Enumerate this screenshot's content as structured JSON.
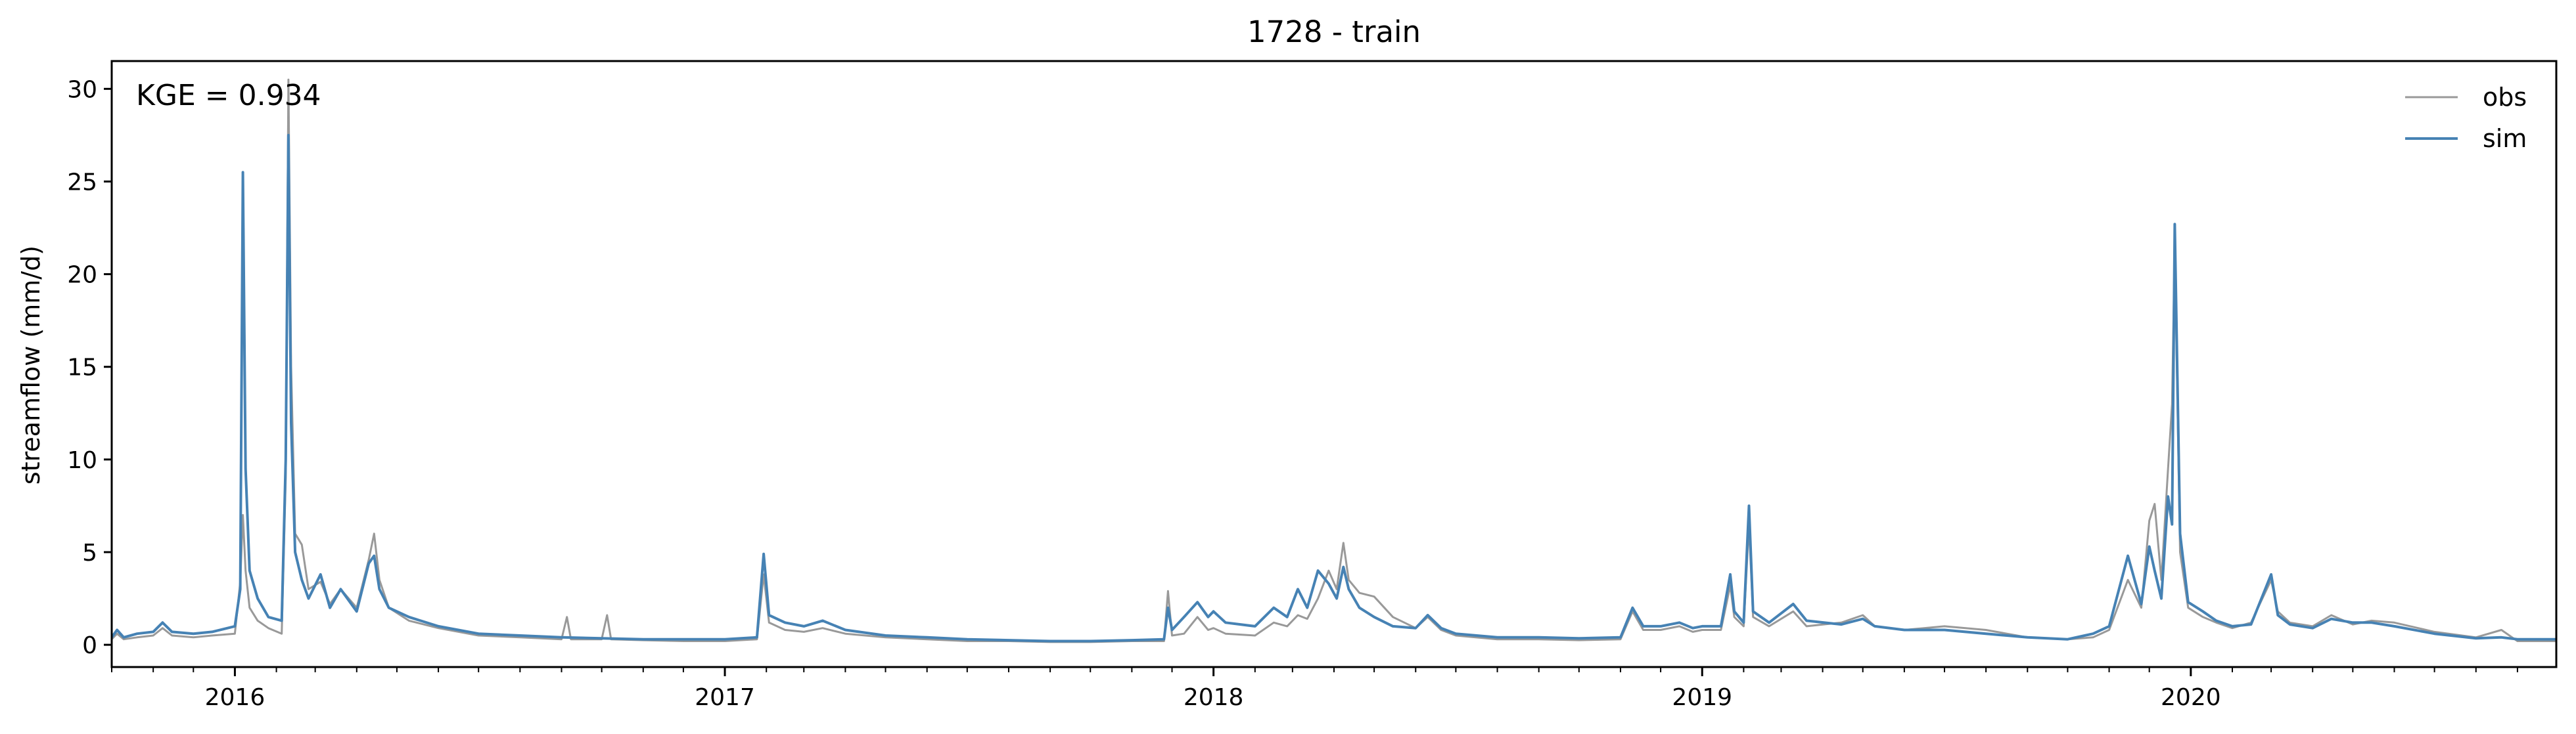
{
  "chart_data": {
    "type": "line",
    "title": "1728 - train",
    "xlabel": "",
    "ylabel": "streamflow (mm/d)",
    "annotation": "KGE = 0.934",
    "xlim": [
      "2015-10-01",
      "2020-09-30"
    ],
    "ylim": [
      -1.2,
      31.5
    ],
    "x_ticks": [
      "2016",
      "2017",
      "2018",
      "2019",
      "2020"
    ],
    "y_ticks": [
      "0",
      "5",
      "10",
      "15",
      "20",
      "25",
      "30"
    ],
    "legend_loc": "upper right",
    "grid": false,
    "series": [
      {
        "name": "obs",
        "color": "#999999",
        "points": [
          [
            "2015-10-01",
            0.3
          ],
          [
            "2015-10-05",
            0.6
          ],
          [
            "2015-10-10",
            0.3
          ],
          [
            "2015-10-20",
            0.4
          ],
          [
            "2015-11-01",
            0.5
          ],
          [
            "2015-11-08",
            0.9
          ],
          [
            "2015-11-15",
            0.5
          ],
          [
            "2015-12-01",
            0.4
          ],
          [
            "2015-12-15",
            0.5
          ],
          [
            "2016-01-01",
            0.6
          ],
          [
            "2016-01-05",
            3.4
          ],
          [
            "2016-01-07",
            7.0
          ],
          [
            "2016-01-09",
            4.0
          ],
          [
            "2016-01-12",
            2.0
          ],
          [
            "2016-01-18",
            1.3
          ],
          [
            "2016-01-26",
            0.9
          ],
          [
            "2016-02-05",
            0.6
          ],
          [
            "2016-02-08",
            9.0
          ],
          [
            "2016-02-10",
            30.5
          ],
          [
            "2016-02-12",
            15.0
          ],
          [
            "2016-02-15",
            6.0
          ],
          [
            "2016-02-20",
            5.4
          ],
          [
            "2016-02-25",
            3.0
          ],
          [
            "2016-03-05",
            3.4
          ],
          [
            "2016-03-12",
            2.2
          ],
          [
            "2016-03-20",
            3.0
          ],
          [
            "2016-04-01",
            2.0
          ],
          [
            "2016-04-10",
            4.6
          ],
          [
            "2016-04-14",
            6.0
          ],
          [
            "2016-04-18",
            3.5
          ],
          [
            "2016-04-25",
            2.0
          ],
          [
            "2016-05-10",
            1.3
          ],
          [
            "2016-06-01",
            0.9
          ],
          [
            "2016-07-01",
            0.5
          ],
          [
            "2016-08-01",
            0.4
          ],
          [
            "2016-09-01",
            0.3
          ],
          [
            "2016-09-05",
            1.5
          ],
          [
            "2016-09-08",
            0.3
          ],
          [
            "2016-10-01",
            0.3
          ],
          [
            "2016-10-05",
            1.6
          ],
          [
            "2016-10-08",
            0.3
          ],
          [
            "2016-11-01",
            0.25
          ],
          [
            "2016-12-01",
            0.2
          ],
          [
            "2017-01-01",
            0.2
          ],
          [
            "2017-01-25",
            0.3
          ],
          [
            "2017-01-30",
            3.8
          ],
          [
            "2017-02-03",
            1.2
          ],
          [
            "2017-02-15",
            0.8
          ],
          [
            "2017-03-01",
            0.7
          ],
          [
            "2017-03-15",
            0.9
          ],
          [
            "2017-04-01",
            0.6
          ],
          [
            "2017-05-01",
            0.4
          ],
          [
            "2017-06-01",
            0.3
          ],
          [
            "2017-07-01",
            0.2
          ],
          [
            "2017-08-01",
            0.2
          ],
          [
            "2017-09-01",
            0.15
          ],
          [
            "2017-10-01",
            0.15
          ],
          [
            "2017-11-01",
            0.2
          ],
          [
            "2017-11-25",
            0.2
          ],
          [
            "2017-11-28",
            2.9
          ],
          [
            "2017-12-01",
            0.5
          ],
          [
            "2017-12-10",
            0.6
          ],
          [
            "2017-12-20",
            1.5
          ],
          [
            "2017-12-28",
            0.8
          ],
          [
            "2018-01-01",
            0.9
          ],
          [
            "2018-01-10",
            0.6
          ],
          [
            "2018-02-01",
            0.5
          ],
          [
            "2018-02-15",
            1.2
          ],
          [
            "2018-02-25",
            1.0
          ],
          [
            "2018-03-05",
            1.6
          ],
          [
            "2018-03-12",
            1.4
          ],
          [
            "2018-03-20",
            2.5
          ],
          [
            "2018-03-28",
            4.0
          ],
          [
            "2018-04-03",
            3.0
          ],
          [
            "2018-04-08",
            5.5
          ],
          [
            "2018-04-12",
            3.5
          ],
          [
            "2018-04-20",
            2.8
          ],
          [
            "2018-05-01",
            2.6
          ],
          [
            "2018-05-15",
            1.5
          ],
          [
            "2018-06-01",
            0.9
          ],
          [
            "2018-06-10",
            1.5
          ],
          [
            "2018-06-20",
            0.8
          ],
          [
            "2018-07-01",
            0.5
          ],
          [
            "2018-08-01",
            0.3
          ],
          [
            "2018-09-01",
            0.3
          ],
          [
            "2018-10-01",
            0.25
          ],
          [
            "2018-11-01",
            0.3
          ],
          [
            "2018-11-10",
            1.8
          ],
          [
            "2018-11-18",
            0.8
          ],
          [
            "2018-12-01",
            0.8
          ],
          [
            "2018-12-15",
            1.0
          ],
          [
            "2018-12-25",
            0.7
          ],
          [
            "2019-01-01",
            0.8
          ],
          [
            "2019-01-15",
            0.8
          ],
          [
            "2019-01-22",
            3.2
          ],
          [
            "2019-01-25",
            1.5
          ],
          [
            "2019-02-01",
            1.0
          ],
          [
            "2019-02-05",
            6.5
          ],
          [
            "2019-02-08",
            1.5
          ],
          [
            "2019-02-20",
            1.0
          ],
          [
            "2019-03-10",
            1.8
          ],
          [
            "2019-03-20",
            1.0
          ],
          [
            "2019-04-15",
            1.2
          ],
          [
            "2019-05-01",
            1.6
          ],
          [
            "2019-05-10",
            1.0
          ],
          [
            "2019-06-01",
            0.8
          ],
          [
            "2019-07-01",
            1.0
          ],
          [
            "2019-08-01",
            0.8
          ],
          [
            "2019-09-01",
            0.4
          ],
          [
            "2019-10-01",
            0.3
          ],
          [
            "2019-10-20",
            0.4
          ],
          [
            "2019-11-01",
            0.8
          ],
          [
            "2019-11-15",
            3.5
          ],
          [
            "2019-11-25",
            2.0
          ],
          [
            "2019-12-01",
            6.7
          ],
          [
            "2019-12-05",
            7.6
          ],
          [
            "2019-12-10",
            3.5
          ],
          [
            "2019-12-15",
            9.5
          ],
          [
            "2019-12-18",
            13.0
          ],
          [
            "2019-12-20",
            21.5
          ],
          [
            "2019-12-24",
            5.0
          ],
          [
            "2019-12-30",
            2.0
          ],
          [
            "2020-01-10",
            1.5
          ],
          [
            "2020-01-20",
            1.2
          ],
          [
            "2020-02-01",
            0.9
          ],
          [
            "2020-02-15",
            1.2
          ],
          [
            "2020-03-01",
            3.5
          ],
          [
            "2020-03-06",
            1.8
          ],
          [
            "2020-03-15",
            1.2
          ],
          [
            "2020-04-01",
            1.0
          ],
          [
            "2020-04-15",
            1.6
          ],
          [
            "2020-05-01",
            1.1
          ],
          [
            "2020-05-15",
            1.3
          ],
          [
            "2020-06-01",
            1.2
          ],
          [
            "2020-07-01",
            0.7
          ],
          [
            "2020-08-01",
            0.4
          ],
          [
            "2020-08-20",
            0.8
          ],
          [
            "2020-09-01",
            0.2
          ],
          [
            "2020-09-30",
            0.2
          ]
        ]
      },
      {
        "name": "sim",
        "color": "#4682b4",
        "points": [
          [
            "2015-10-01",
            0.4
          ],
          [
            "2015-10-05",
            0.8
          ],
          [
            "2015-10-10",
            0.4
          ],
          [
            "2015-10-20",
            0.6
          ],
          [
            "2015-11-01",
            0.7
          ],
          [
            "2015-11-08",
            1.2
          ],
          [
            "2015-11-15",
            0.7
          ],
          [
            "2015-12-01",
            0.6
          ],
          [
            "2015-12-15",
            0.7
          ],
          [
            "2016-01-01",
            1.0
          ],
          [
            "2016-01-05",
            3.0
          ],
          [
            "2016-01-07",
            25.5
          ],
          [
            "2016-01-09",
            9.5
          ],
          [
            "2016-01-12",
            4.0
          ],
          [
            "2016-01-18",
            2.5
          ],
          [
            "2016-01-26",
            1.5
          ],
          [
            "2016-02-05",
            1.3
          ],
          [
            "2016-02-08",
            10.0
          ],
          [
            "2016-02-10",
            27.5
          ],
          [
            "2016-02-12",
            12.0
          ],
          [
            "2016-02-15",
            5.0
          ],
          [
            "2016-02-20",
            3.5
          ],
          [
            "2016-02-25",
            2.5
          ],
          [
            "2016-03-05",
            3.8
          ],
          [
            "2016-03-12",
            2.0
          ],
          [
            "2016-03-20",
            3.0
          ],
          [
            "2016-04-01",
            1.8
          ],
          [
            "2016-04-10",
            4.4
          ],
          [
            "2016-04-14",
            4.8
          ],
          [
            "2016-04-18",
            3.0
          ],
          [
            "2016-04-25",
            2.0
          ],
          [
            "2016-05-10",
            1.5
          ],
          [
            "2016-06-01",
            1.0
          ],
          [
            "2016-07-01",
            0.6
          ],
          [
            "2016-08-01",
            0.5
          ],
          [
            "2016-09-01",
            0.4
          ],
          [
            "2016-10-01",
            0.35
          ],
          [
            "2016-11-01",
            0.3
          ],
          [
            "2016-12-01",
            0.3
          ],
          [
            "2017-01-01",
            0.3
          ],
          [
            "2017-01-25",
            0.4
          ],
          [
            "2017-01-30",
            4.9
          ],
          [
            "2017-02-03",
            1.6
          ],
          [
            "2017-02-15",
            1.2
          ],
          [
            "2017-03-01",
            1.0
          ],
          [
            "2017-03-15",
            1.3
          ],
          [
            "2017-04-01",
            0.8
          ],
          [
            "2017-05-01",
            0.5
          ],
          [
            "2017-06-01",
            0.4
          ],
          [
            "2017-07-01",
            0.3
          ],
          [
            "2017-08-01",
            0.25
          ],
          [
            "2017-09-01",
            0.2
          ],
          [
            "2017-10-01",
            0.2
          ],
          [
            "2017-11-01",
            0.25
          ],
          [
            "2017-11-25",
            0.3
          ],
          [
            "2017-11-28",
            2.0
          ],
          [
            "2017-12-01",
            0.8
          ],
          [
            "2017-12-10",
            1.5
          ],
          [
            "2017-12-20",
            2.3
          ],
          [
            "2017-12-28",
            1.5
          ],
          [
            "2018-01-01",
            1.8
          ],
          [
            "2018-01-10",
            1.2
          ],
          [
            "2018-02-01",
            1.0
          ],
          [
            "2018-02-15",
            2.0
          ],
          [
            "2018-02-25",
            1.5
          ],
          [
            "2018-03-05",
            3.0
          ],
          [
            "2018-03-12",
            2.0
          ],
          [
            "2018-03-20",
            4.0
          ],
          [
            "2018-03-28",
            3.3
          ],
          [
            "2018-04-03",
            2.5
          ],
          [
            "2018-04-08",
            4.2
          ],
          [
            "2018-04-12",
            3.0
          ],
          [
            "2018-04-20",
            2.0
          ],
          [
            "2018-05-01",
            1.5
          ],
          [
            "2018-05-15",
            1.0
          ],
          [
            "2018-06-01",
            0.9
          ],
          [
            "2018-06-10",
            1.6
          ],
          [
            "2018-06-20",
            0.9
          ],
          [
            "2018-07-01",
            0.6
          ],
          [
            "2018-08-01",
            0.4
          ],
          [
            "2018-09-01",
            0.4
          ],
          [
            "2018-10-01",
            0.35
          ],
          [
            "2018-11-01",
            0.4
          ],
          [
            "2018-11-10",
            2.0
          ],
          [
            "2018-11-18",
            1.0
          ],
          [
            "2018-12-01",
            1.0
          ],
          [
            "2018-12-15",
            1.2
          ],
          [
            "2018-12-25",
            0.9
          ],
          [
            "2019-01-01",
            1.0
          ],
          [
            "2019-01-15",
            1.0
          ],
          [
            "2019-01-22",
            3.8
          ],
          [
            "2019-01-25",
            1.8
          ],
          [
            "2019-02-01",
            1.2
          ],
          [
            "2019-02-05",
            7.5
          ],
          [
            "2019-02-08",
            1.8
          ],
          [
            "2019-02-20",
            1.2
          ],
          [
            "2019-03-10",
            2.2
          ],
          [
            "2019-03-20",
            1.3
          ],
          [
            "2019-04-15",
            1.1
          ],
          [
            "2019-05-01",
            1.4
          ],
          [
            "2019-05-10",
            1.0
          ],
          [
            "2019-06-01",
            0.8
          ],
          [
            "2019-07-01",
            0.8
          ],
          [
            "2019-08-01",
            0.6
          ],
          [
            "2019-09-01",
            0.4
          ],
          [
            "2019-10-01",
            0.3
          ],
          [
            "2019-10-20",
            0.6
          ],
          [
            "2019-11-01",
            1.0
          ],
          [
            "2019-11-15",
            4.8
          ],
          [
            "2019-11-25",
            2.2
          ],
          [
            "2019-12-01",
            5.3
          ],
          [
            "2019-12-05",
            4.0
          ],
          [
            "2019-12-10",
            2.5
          ],
          [
            "2019-12-15",
            8.0
          ],
          [
            "2019-12-18",
            6.5
          ],
          [
            "2019-12-20",
            22.7
          ],
          [
            "2019-12-24",
            6.0
          ],
          [
            "2019-12-30",
            2.3
          ],
          [
            "2020-01-10",
            1.8
          ],
          [
            "2020-01-20",
            1.3
          ],
          [
            "2020-02-01",
            1.0
          ],
          [
            "2020-02-15",
            1.1
          ],
          [
            "2020-03-01",
            3.8
          ],
          [
            "2020-03-06",
            1.6
          ],
          [
            "2020-03-15",
            1.1
          ],
          [
            "2020-04-01",
            0.9
          ],
          [
            "2020-04-15",
            1.4
          ],
          [
            "2020-05-01",
            1.2
          ],
          [
            "2020-05-15",
            1.2
          ],
          [
            "2020-06-01",
            1.0
          ],
          [
            "2020-07-01",
            0.6
          ],
          [
            "2020-08-01",
            0.35
          ],
          [
            "2020-08-20",
            0.4
          ],
          [
            "2020-09-01",
            0.3
          ],
          [
            "2020-09-30",
            0.3
          ]
        ]
      }
    ]
  }
}
